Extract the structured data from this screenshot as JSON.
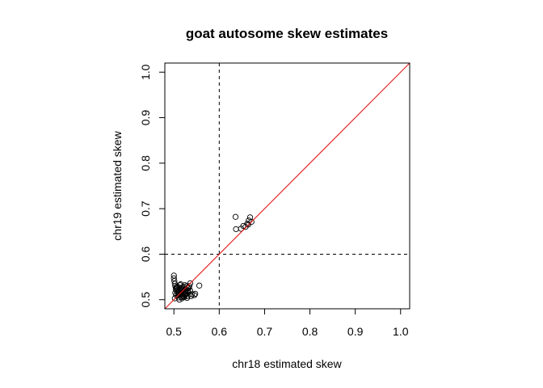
{
  "chart_data": {
    "type": "scatter",
    "title": "goat autosome skew estimates",
    "xlabel": "chr18 estimated skew",
    "ylabel": "chr19 estimated skew",
    "xlim": [
      0.48,
      1.02
    ],
    "ylim": [
      0.48,
      1.02
    ],
    "x_ticks": [
      0.5,
      0.6,
      0.7,
      0.8,
      0.9,
      1.0
    ],
    "y_ticks": [
      0.5,
      0.6,
      0.7,
      0.8,
      0.9,
      1.0
    ],
    "x_tick_labels": [
      "0.5",
      "0.6",
      "0.7",
      "0.8",
      "0.9",
      "1.0"
    ],
    "y_tick_labels": [
      "0.5",
      "0.6",
      "0.7",
      "0.8",
      "0.9",
      "1.0"
    ],
    "grid": false,
    "reference_lines": {
      "vertical_x": 0.6,
      "horizontal_y": 0.6,
      "identity_line_color": "#e31a1c"
    },
    "points": [
      [
        0.636,
        0.682
      ],
      [
        0.637,
        0.655
      ],
      [
        0.648,
        0.656
      ],
      [
        0.653,
        0.662
      ],
      [
        0.658,
        0.66
      ],
      [
        0.662,
        0.667
      ],
      [
        0.665,
        0.674
      ],
      [
        0.668,
        0.681
      ],
      [
        0.671,
        0.671
      ],
      [
        0.664,
        0.665
      ],
      [
        0.556,
        0.531
      ],
      [
        0.547,
        0.513
      ],
      [
        0.545,
        0.51
      ],
      [
        0.536,
        0.536
      ],
      [
        0.533,
        0.526
      ],
      [
        0.53,
        0.52
      ],
      [
        0.527,
        0.515
      ],
      [
        0.525,
        0.51
      ],
      [
        0.522,
        0.506
      ],
      [
        0.518,
        0.503
      ],
      [
        0.515,
        0.534
      ],
      [
        0.512,
        0.5
      ],
      [
        0.5,
        0.553
      ],
      [
        0.5,
        0.547
      ],
      [
        0.501,
        0.541
      ],
      [
        0.502,
        0.535
      ],
      [
        0.503,
        0.53
      ],
      [
        0.505,
        0.527
      ],
      [
        0.507,
        0.525
      ],
      [
        0.509,
        0.522
      ],
      [
        0.511,
        0.519
      ],
      [
        0.513,
        0.517
      ],
      [
        0.515,
        0.515
      ],
      [
        0.517,
        0.512
      ],
      [
        0.519,
        0.51
      ],
      [
        0.521,
        0.508
      ],
      [
        0.523,
        0.506
      ],
      [
        0.52,
        0.52
      ],
      [
        0.525,
        0.524
      ],
      [
        0.528,
        0.53
      ],
      [
        0.51,
        0.505
      ],
      [
        0.505,
        0.51
      ],
      [
        0.514,
        0.526
      ],
      [
        0.508,
        0.516
      ],
      [
        0.516,
        0.52
      ],
      [
        0.52,
        0.514
      ],
      [
        0.524,
        0.518
      ],
      [
        0.526,
        0.512
      ],
      [
        0.53,
        0.508
      ],
      [
        0.532,
        0.516
      ],
      [
        0.502,
        0.503
      ],
      [
        0.503,
        0.515
      ],
      [
        0.506,
        0.52
      ],
      [
        0.509,
        0.509
      ],
      [
        0.512,
        0.513
      ],
      [
        0.518,
        0.522
      ],
      [
        0.522,
        0.528
      ],
      [
        0.527,
        0.522
      ],
      [
        0.531,
        0.525
      ],
      [
        0.534,
        0.53
      ],
      [
        0.536,
        0.52
      ],
      [
        0.54,
        0.512
      ],
      [
        0.538,
        0.508
      ],
      [
        0.529,
        0.504
      ],
      [
        0.517,
        0.506
      ],
      [
        0.508,
        0.529
      ],
      [
        0.504,
        0.523
      ],
      [
        0.513,
        0.532
      ],
      [
        0.519,
        0.527
      ],
      [
        0.524,
        0.532
      ]
    ]
  }
}
